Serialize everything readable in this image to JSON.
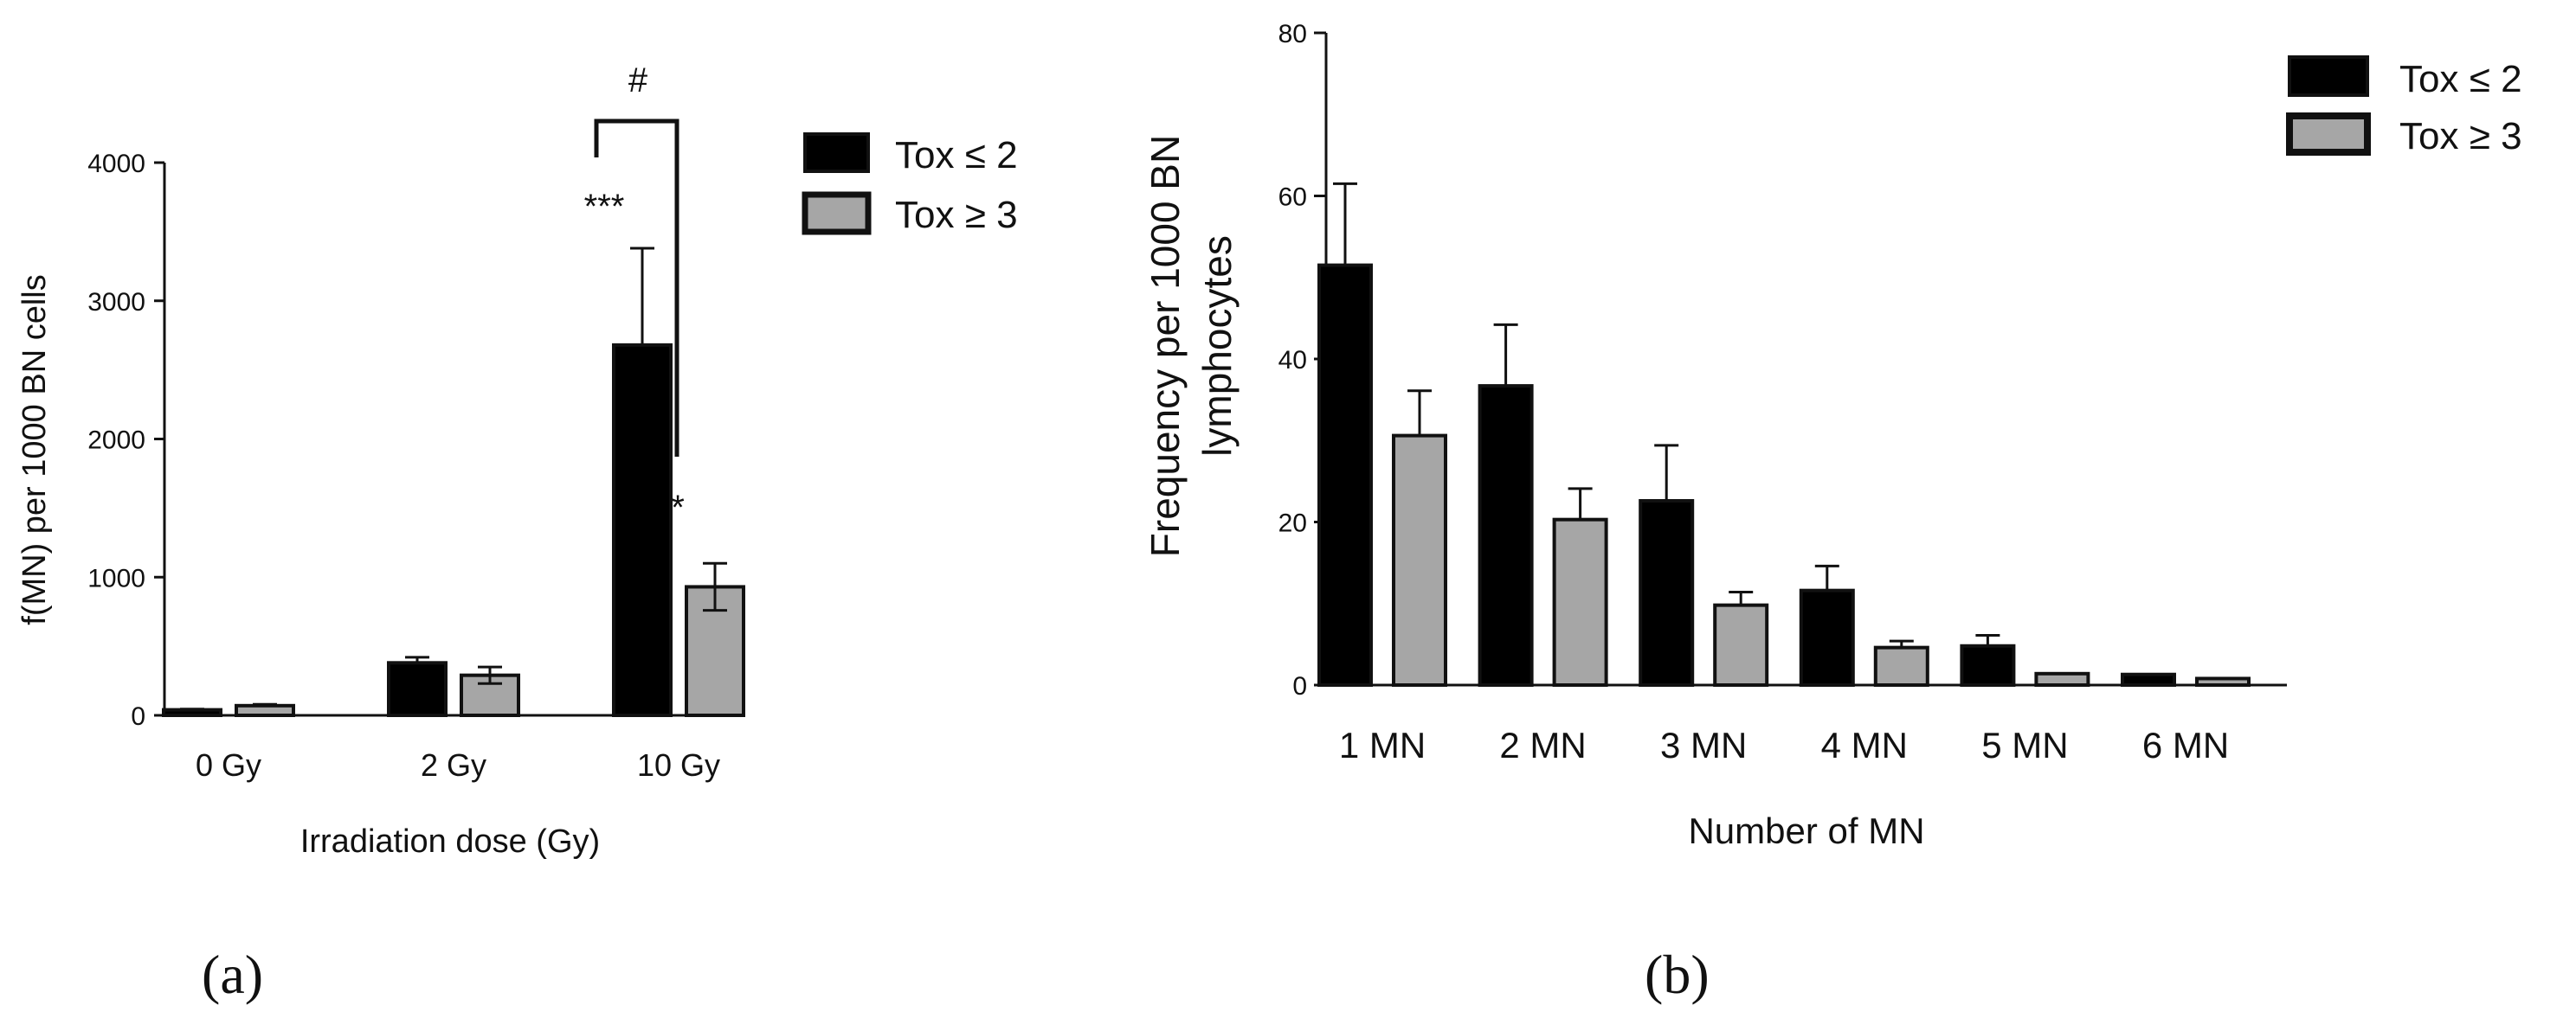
{
  "colors": {
    "tox_low": "#000000",
    "tox_high": "#a6a6a6",
    "axis": "#111111"
  },
  "chart_data": [
    {
      "id": "a",
      "type": "bar",
      "panel_label": "(a)",
      "title": "",
      "xlabel": "Irradiation dose (Gy)",
      "ylabel": "f(MN) per 1000 BN cells",
      "ylim": [
        0,
        4000
      ],
      "yticks": [
        0,
        1000,
        2000,
        3000,
        4000
      ],
      "ytick_labels": [
        "0",
        "1000",
        "2000",
        "3000",
        "4000"
      ],
      "categories": [
        "0 Gy",
        "2 Gy",
        "10 Gy"
      ],
      "series": [
        {
          "name": "Tox ≤ 2",
          "values": [
            40,
            380,
            2680
          ],
          "errors": [
            5,
            40,
            700
          ]
        },
        {
          "name": "Tox ≥ 3",
          "values": [
            70,
            290,
            930
          ],
          "errors": [
            10,
            60,
            170
          ]
        }
      ],
      "annotations": [
        {
          "text": "***",
          "category": "10 Gy",
          "series": 0
        },
        {
          "text": "*",
          "category": "10 Gy",
          "series": 1
        },
        {
          "text": "#",
          "bracket": [
            "Tox ≤ 2",
            "Tox ≥ 3"
          ],
          "category": "10 Gy"
        }
      ],
      "legend": [
        "Tox ≤ 2",
        "Tox ≥ 3"
      ],
      "legend_position": "top-right"
    },
    {
      "id": "b",
      "type": "bar",
      "panel_label": "(b)",
      "title": "",
      "xlabel": "Number of MN",
      "ylabel_lines": [
        "Frequency per 1000 BN",
        "lymphocytes"
      ],
      "ylim": [
        0,
        80
      ],
      "yticks": [
        0,
        20,
        40,
        60,
        80
      ],
      "ytick_labels": [
        "0",
        "20",
        "40",
        "60",
        "80"
      ],
      "categories": [
        "1 MN",
        "2 MN",
        "3 MN",
        "4 MN",
        "5 MN",
        "6 MN"
      ],
      "series": [
        {
          "name": "Tox ≤ 2",
          "values": [
            51.5,
            36.7,
            22.6,
            11.6,
            4.8,
            1.3
          ],
          "errors": [
            10,
            7.5,
            6.8,
            3,
            1.3,
            0
          ]
        },
        {
          "name": "Tox ≥ 3",
          "values": [
            30.6,
            20.3,
            9.8,
            4.6,
            1.4,
            0.8
          ],
          "errors": [
            5.5,
            3.8,
            1.6,
            0.8,
            0,
            0
          ]
        }
      ],
      "legend": [
        "Tox ≤ 2",
        "Tox ≥ 3"
      ],
      "legend_position": "top-right"
    }
  ]
}
